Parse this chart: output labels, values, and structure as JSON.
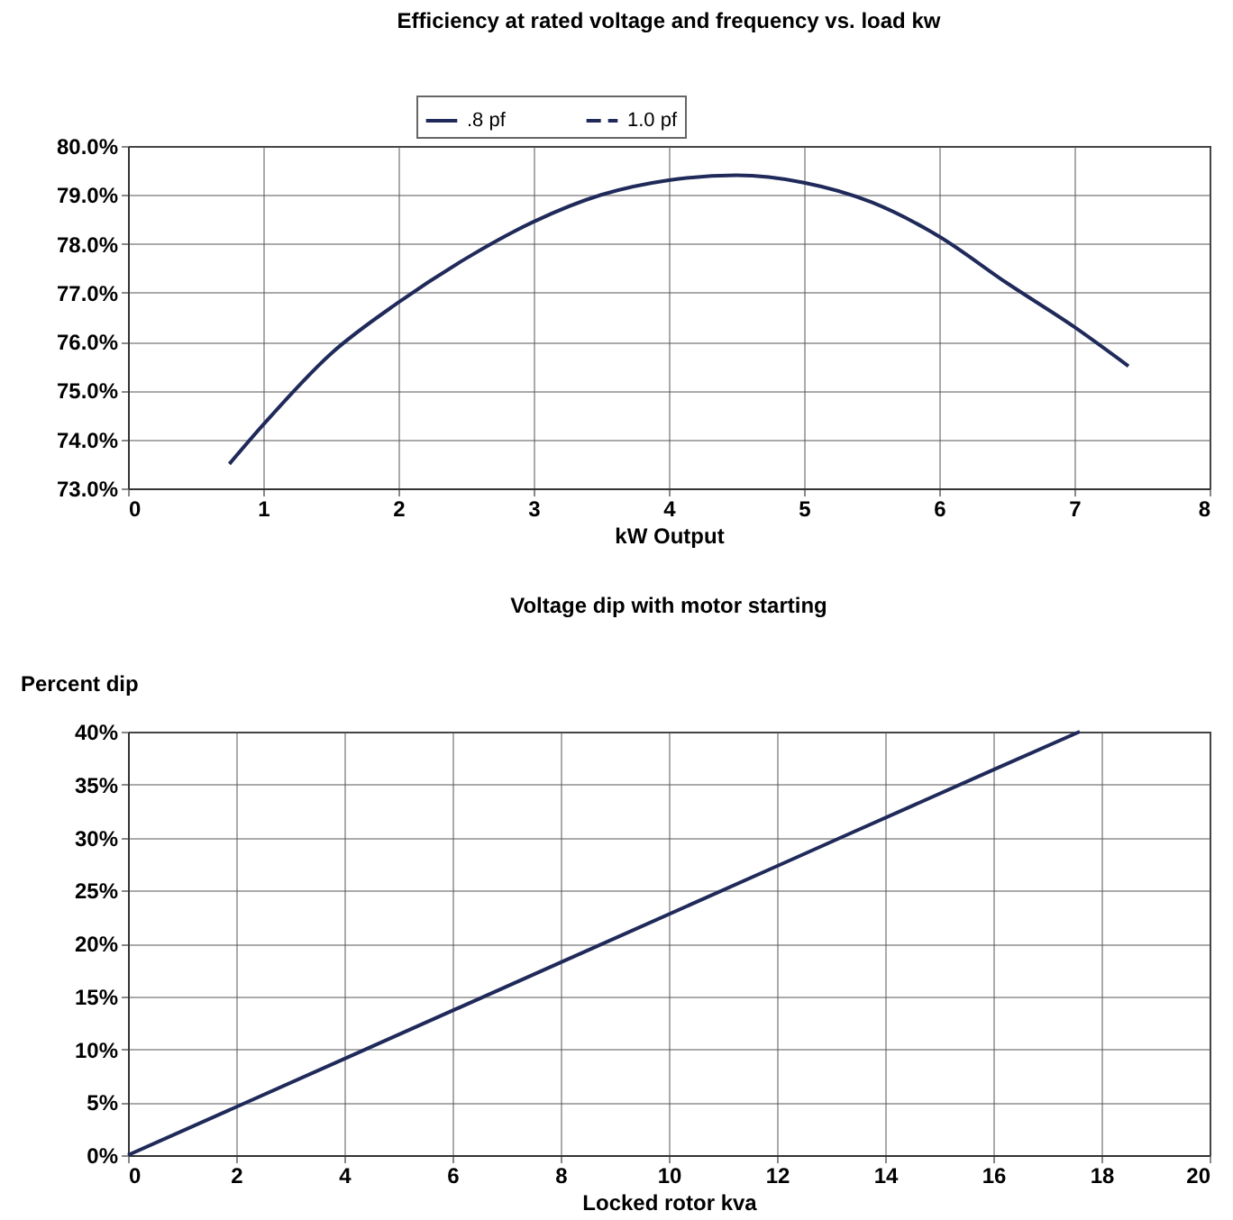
{
  "chart_data": [
    {
      "type": "line",
      "title": "Efficiency at rated voltage and frequency vs. load kw",
      "xlabel": "kW Output",
      "x": [
        0.75,
        1.0,
        1.5,
        2.0,
        2.5,
        3.0,
        3.5,
        4.0,
        4.5,
        5.0,
        5.5,
        6.0,
        6.5,
        7.0,
        7.4
      ],
      "series": [
        {
          "name": ".8 pf",
          "color": "#1f2a5a",
          "line_style": "solid",
          "values": [
            73.5,
            74.3,
            75.75,
            76.8,
            77.7,
            78.45,
            79.0,
            79.3,
            79.4,
            79.25,
            78.85,
            78.15,
            77.2,
            76.3,
            75.5
          ]
        },
        {
          "name": "1.0 pf",
          "color": "#1f2a5a",
          "line_style": "dashed",
          "values": [
            null,
            null,
            null,
            null,
            null,
            null,
            null,
            null,
            null,
            null,
            null,
            null,
            null,
            null,
            null
          ]
        }
      ],
      "xlim": [
        0,
        8
      ],
      "xticks": [
        0,
        1,
        2,
        3,
        4,
        5,
        6,
        7,
        8
      ],
      "ylim": [
        73,
        80
      ],
      "yticks": [
        {
          "value": 73,
          "label": "73.0%"
        },
        {
          "value": 74,
          "label": "74.0%"
        },
        {
          "value": 75,
          "label": "75.0%"
        },
        {
          "value": 76,
          "label": "76.0%"
        },
        {
          "value": 77,
          "label": "77.0%"
        },
        {
          "value": 78,
          "label": "78.0%"
        },
        {
          "value": 79,
          "label": "79.0%"
        },
        {
          "value": 80,
          "label": "80.0%"
        }
      ],
      "grid": true,
      "legend": "top"
    },
    {
      "type": "line",
      "title": "Voltage dip with motor starting",
      "xlabel": "Locked rotor kva",
      "ylabel": "Percent dip",
      "x": [
        0,
        4,
        8,
        12,
        16,
        17.6
      ],
      "series": [
        {
          "color": "#1f2a5a",
          "values": [
            0,
            9.1,
            18.2,
            27.3,
            36.4,
            40
          ]
        }
      ],
      "xlim": [
        0,
        20
      ],
      "xticks": [
        0,
        2,
        4,
        6,
        8,
        10,
        12,
        14,
        16,
        18,
        20
      ],
      "ylim": [
        0,
        40
      ],
      "yticks": [
        {
          "value": 0,
          "label": "0%"
        },
        {
          "value": 5,
          "label": "5%"
        },
        {
          "value": 10,
          "label": "10%"
        },
        {
          "value": 15,
          "label": "15%"
        },
        {
          "value": 20,
          "label": "20%"
        },
        {
          "value": 25,
          "label": "25%"
        },
        {
          "value": 30,
          "label": "30%"
        },
        {
          "value": 35,
          "label": "35%"
        },
        {
          "value": 40,
          "label": "40%"
        }
      ],
      "grid": true
    }
  ]
}
